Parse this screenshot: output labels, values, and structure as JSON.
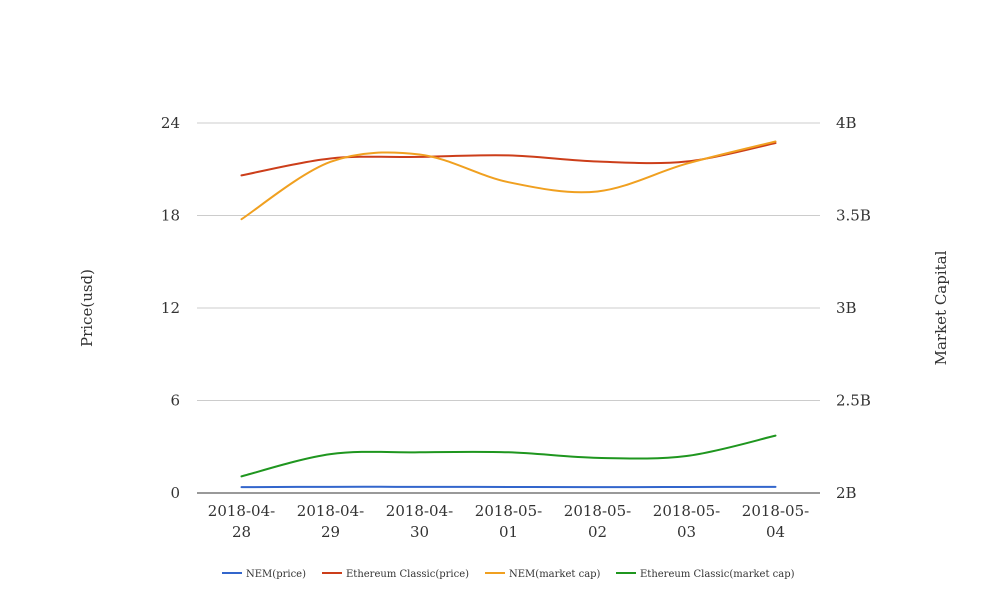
{
  "chart_data": {
    "type": "line",
    "title": "",
    "categories": [
      [
        "2018-04-",
        "28"
      ],
      [
        "2018-04-",
        "29"
      ],
      [
        "2018-04-",
        "30"
      ],
      [
        "2018-05-",
        "01"
      ],
      [
        "2018-05-",
        "02"
      ],
      [
        "2018-05-",
        "03"
      ],
      [
        "2018-05-",
        "04"
      ]
    ],
    "y_left": {
      "label": "Price(usd)",
      "range": [
        0,
        24
      ],
      "ticks": [
        "0",
        "6",
        "12",
        "18",
        "24"
      ],
      "tick_values": [
        0,
        6,
        12,
        18,
        24
      ]
    },
    "y_right": {
      "label": "Market Capital",
      "range": [
        2000000000,
        4000000000
      ],
      "ticks": [
        "2B",
        "2.5B",
        "3B",
        "3.5B",
        "4B"
      ],
      "tick_values": [
        2000000000,
        2500000000,
        3000000000,
        3500000000,
        4000000000
      ]
    },
    "grid": true,
    "legend_position": "bottom",
    "series": [
      {
        "name": "NEM(price)",
        "axis": "left",
        "color": "#3366cc",
        "values": [
          0.38,
          0.4,
          0.4,
          0.39,
          0.38,
          0.39,
          0.4
        ]
      },
      {
        "name": "Ethereum Classic(price)",
        "axis": "left",
        "color": "#cc3e1a",
        "values": [
          20.6,
          21.7,
          21.8,
          21.9,
          21.5,
          21.5,
          22.7
        ]
      },
      {
        "name": "NEM(market cap)",
        "axis": "right",
        "color": "#f0a020",
        "values": [
          3480000000,
          3790000000,
          3830000000,
          3680000000,
          3630000000,
          3780000000,
          3900000000
        ]
      },
      {
        "name": "Ethereum Classic(market cap)",
        "axis": "right",
        "color": "#1f961f",
        "values": [
          2090000000,
          2210000000,
          2220000000,
          2220000000,
          2190000000,
          2200000000,
          2310000000
        ]
      }
    ]
  }
}
